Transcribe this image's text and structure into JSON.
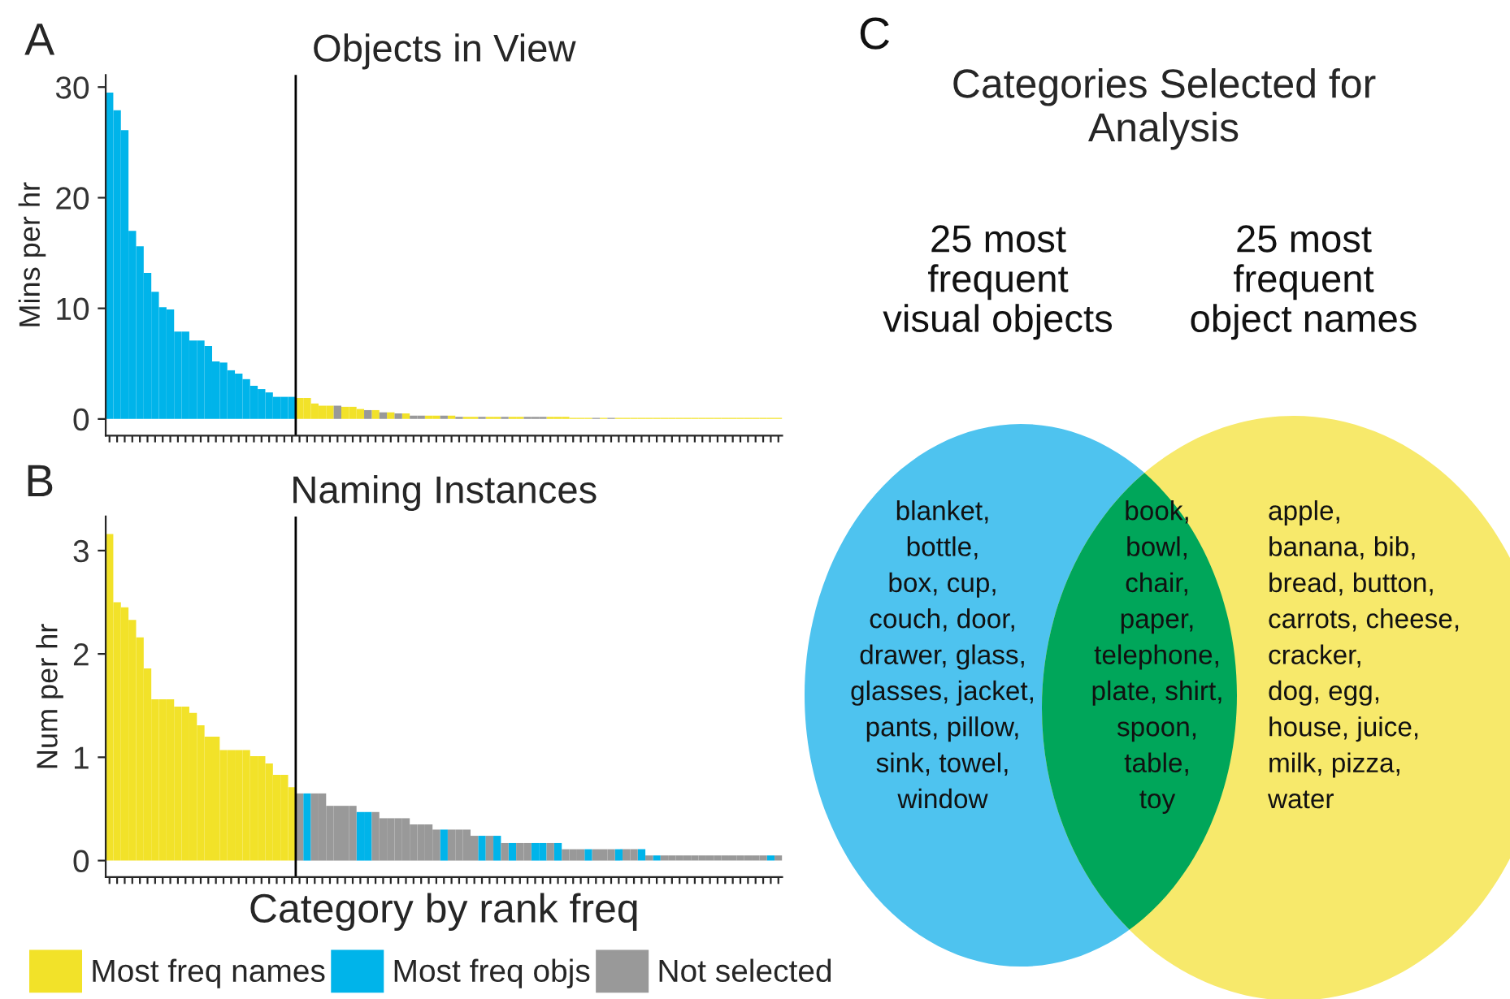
{
  "chart_data": [
    {
      "type": "bar",
      "title": "Objects in View",
      "ylabel": "Mins per hr",
      "annotations": [
        "A"
      ],
      "categories": [
        null,
        null,
        null,
        null,
        null,
        null,
        null,
        null,
        null,
        null,
        null,
        null,
        null,
        null,
        null,
        null,
        null,
        null,
        null,
        null,
        null,
        null,
        null,
        null,
        null,
        null,
        null,
        null,
        null,
        null,
        null,
        null,
        null,
        null,
        null,
        null,
        null,
        null,
        null,
        null,
        null,
        null,
        null,
        null,
        null,
        null,
        null,
        null,
        null,
        null,
        null,
        null,
        null,
        null,
        null,
        null,
        null,
        null,
        null,
        null,
        null,
        null,
        null,
        null,
        null,
        null,
        null,
        null,
        null,
        null,
        null,
        null,
        null,
        null,
        null,
        null,
        null,
        null,
        null,
        null,
        null,
        null,
        null,
        null,
        null,
        null,
        null,
        null,
        null
      ],
      "series": [
        {
          "color": "#f2e229",
          "values": [
            null,
            null,
            null,
            null,
            null,
            null,
            null,
            null,
            null,
            null,
            null,
            null,
            null,
            null,
            null,
            null,
            null,
            null,
            null,
            null,
            null,
            null,
            null,
            null,
            null,
            1.9,
            1.9,
            1.4,
            1.2,
            1.2,
            null,
            1.1,
            1.1,
            0.9,
            null,
            0.8,
            null,
            0.6,
            null,
            0.5,
            null,
            null,
            0.3,
            0.3,
            null,
            0.3,
            null,
            0.2,
            0.2,
            null,
            0.2,
            0.2,
            null,
            0.2,
            0.2,
            null,
            null,
            null,
            0.2,
            0.2,
            0.2,
            0.1,
            0.1,
            0.1,
            null,
            0.1,
            null,
            0.1,
            0.1,
            0.1,
            0.1,
            0.1,
            0.1,
            0.1,
            0.1,
            0.1,
            0.1,
            0.1,
            0.1,
            0.1,
            0.1,
            0.1,
            0.1,
            0.1,
            0.1,
            0.1,
            0.1,
            0.1,
            0.1
          ]
        },
        {
          "color": "#00b4ea",
          "values": [
            29.5,
            27.9,
            26.1,
            17.0,
            15.6,
            13.2,
            11.5,
            10.1,
            9.9,
            7.9,
            7.9,
            7.1,
            7.1,
            6.6,
            5.2,
            5.1,
            4.4,
            4.1,
            3.6,
            3.0,
            2.7,
            2.4,
            2.0,
            2.0,
            2.0,
            null,
            null,
            null,
            null,
            null,
            null,
            null,
            null,
            null,
            null,
            null,
            null,
            null,
            null,
            null,
            null,
            null,
            null,
            null,
            null,
            null,
            null,
            null,
            null,
            null,
            null,
            null,
            null,
            null,
            null,
            null,
            null,
            null,
            null,
            null,
            null,
            null,
            null,
            null,
            null,
            null,
            null,
            null,
            null,
            null,
            null,
            null,
            null,
            null,
            null,
            null,
            null,
            null,
            null,
            null,
            null,
            null,
            null,
            null,
            null,
            null,
            null,
            null,
            null
          ]
        },
        {
          "color": "#999999",
          "values": [
            null,
            null,
            null,
            null,
            null,
            null,
            null,
            null,
            null,
            null,
            null,
            null,
            null,
            null,
            null,
            null,
            null,
            null,
            null,
            null,
            null,
            null,
            null,
            null,
            null,
            null,
            null,
            null,
            null,
            null,
            1.2,
            null,
            null,
            null,
            0.8,
            null,
            0.6,
            null,
            0.5,
            null,
            0.3,
            0.3,
            null,
            null,
            0.3,
            null,
            0.2,
            null,
            null,
            0.2,
            null,
            null,
            0.2,
            null,
            null,
            0.2,
            0.2,
            0.2,
            null,
            null,
            null,
            null,
            null,
            null,
            0.1,
            null,
            0.1,
            null,
            null,
            null,
            null,
            null,
            null,
            null,
            null,
            null,
            null,
            null,
            null,
            null,
            null,
            null,
            null,
            null,
            null,
            null,
            null,
            null,
            null
          ]
        }
      ],
      "ylim": [
        -1.5,
        31.1
      ],
      "yticks": [
        0,
        10,
        20,
        30
      ],
      "tick_labels": "y"
    },
    {
      "type": "bar",
      "title": "Naming Instances",
      "ylabel": "Num per hr",
      "xlabel": "Category by rank freq",
      "annotations": [
        "B"
      ],
      "categories": [
        null,
        null,
        null,
        null,
        null,
        null,
        null,
        null,
        null,
        null,
        null,
        null,
        null,
        null,
        null,
        null,
        null,
        null,
        null,
        null,
        null,
        null,
        null,
        null,
        null,
        null,
        null,
        null,
        null,
        null,
        null,
        null,
        null,
        null,
        null,
        null,
        null,
        null,
        null,
        null,
        null,
        null,
        null,
        null,
        null,
        null,
        null,
        null,
        null,
        null,
        null,
        null,
        null,
        null,
        null,
        null,
        null,
        null,
        null,
        null,
        null,
        null,
        null,
        null,
        null,
        null,
        null,
        null,
        null,
        null,
        null,
        null,
        null,
        null,
        null,
        null,
        null,
        null,
        null,
        null,
        null,
        null,
        null,
        null,
        null,
        null,
        null,
        null,
        null
      ],
      "series": [
        {
          "name": "Most freq names",
          "color": "#f2e229",
          "values": [
            3.16,
            2.5,
            2.45,
            2.33,
            2.16,
            1.86,
            1.56,
            1.56,
            1.56,
            1.49,
            1.49,
            1.43,
            1.31,
            1.2,
            1.2,
            1.07,
            1.07,
            1.07,
            1.07,
            1.01,
            1.01,
            0.94,
            0.83,
            0.83,
            0.71,
            null,
            null,
            null,
            null,
            null,
            null,
            null,
            null,
            null,
            null,
            null,
            null,
            null,
            null,
            null,
            null,
            null,
            null,
            null,
            null,
            null,
            null,
            null,
            null,
            null,
            null,
            null,
            null,
            null,
            null,
            null,
            null,
            null,
            null,
            null,
            null,
            null,
            null,
            null,
            null,
            null,
            null,
            null,
            null,
            null,
            null,
            null,
            null,
            null,
            null,
            null,
            null,
            null,
            null,
            null,
            null,
            null,
            null,
            null,
            null,
            null,
            null,
            null,
            null
          ]
        },
        {
          "name": "Most freq objs",
          "color": "#00b4ea",
          "values": [
            null,
            null,
            null,
            null,
            null,
            null,
            null,
            null,
            null,
            null,
            null,
            null,
            null,
            null,
            null,
            null,
            null,
            null,
            null,
            null,
            null,
            null,
            null,
            null,
            null,
            null,
            0.65,
            null,
            null,
            null,
            null,
            null,
            null,
            0.47,
            0.47,
            null,
            null,
            null,
            null,
            null,
            null,
            null,
            null,
            null,
            0.3,
            null,
            null,
            null,
            null,
            0.24,
            null,
            0.24,
            null,
            0.17,
            null,
            null,
            0.17,
            0.17,
            null,
            0.17,
            null,
            null,
            null,
            0.11,
            null,
            null,
            null,
            0.11,
            null,
            null,
            0.11,
            null,
            0.05,
            null,
            null,
            null,
            null,
            null,
            null,
            null,
            null,
            null,
            null,
            null,
            null,
            null,
            null,
            0.05,
            null
          ]
        },
        {
          "name": "Not selected",
          "color": "#999999",
          "values": [
            null,
            null,
            null,
            null,
            null,
            null,
            null,
            null,
            null,
            null,
            null,
            null,
            null,
            null,
            null,
            null,
            null,
            null,
            null,
            null,
            null,
            null,
            null,
            null,
            null,
            0.65,
            null,
            0.65,
            0.65,
            0.53,
            0.53,
            0.53,
            0.53,
            null,
            null,
            0.47,
            0.41,
            0.41,
            0.41,
            0.41,
            0.35,
            0.35,
            0.35,
            0.3,
            null,
            0.3,
            0.3,
            0.3,
            0.24,
            null,
            0.24,
            null,
            0.17,
            null,
            0.17,
            0.17,
            null,
            null,
            0.17,
            null,
            0.11,
            0.11,
            0.11,
            null,
            0.11,
            0.11,
            0.11,
            null,
            0.11,
            0.11,
            null,
            0.05,
            null,
            0.05,
            0.05,
            0.05,
            0.05,
            0.05,
            0.05,
            0.05,
            0.05,
            0.05,
            0.05,
            0.05,
            0.05,
            0.05,
            0.05,
            null,
            0.05
          ]
        }
      ],
      "ylim": [
        -0.16,
        3.33
      ],
      "yticks": [
        0,
        1,
        2,
        3
      ],
      "tick_labels": "y",
      "legend": "bottom"
    },
    {
      "type": "other",
      "title": "Categories Selected for\nAnalysis",
      "annotations": [
        "C",
        "25 most\nfrequent\nvisual objects",
        "25 most\nfrequent\nobject names",
        "blanket,\nbottle,\nbox, cup,\ncouch, door,\ndrawer, glass,\nglasses, jacket,\npants, pillow,\nsink, towel,\nwindow",
        "book,\nbowl,\nchair,\npaper,\ntelephone,\nplate, shirt,\nspoon,\ntable,\ntoy",
        "apple,\nbanana, bib,\nbread, button,\ncarrots, cheese,\ncracker,\ndog, egg,\nhouse, juice,\nmilk, pizza,\nwater"
      ]
    }
  ]
}
